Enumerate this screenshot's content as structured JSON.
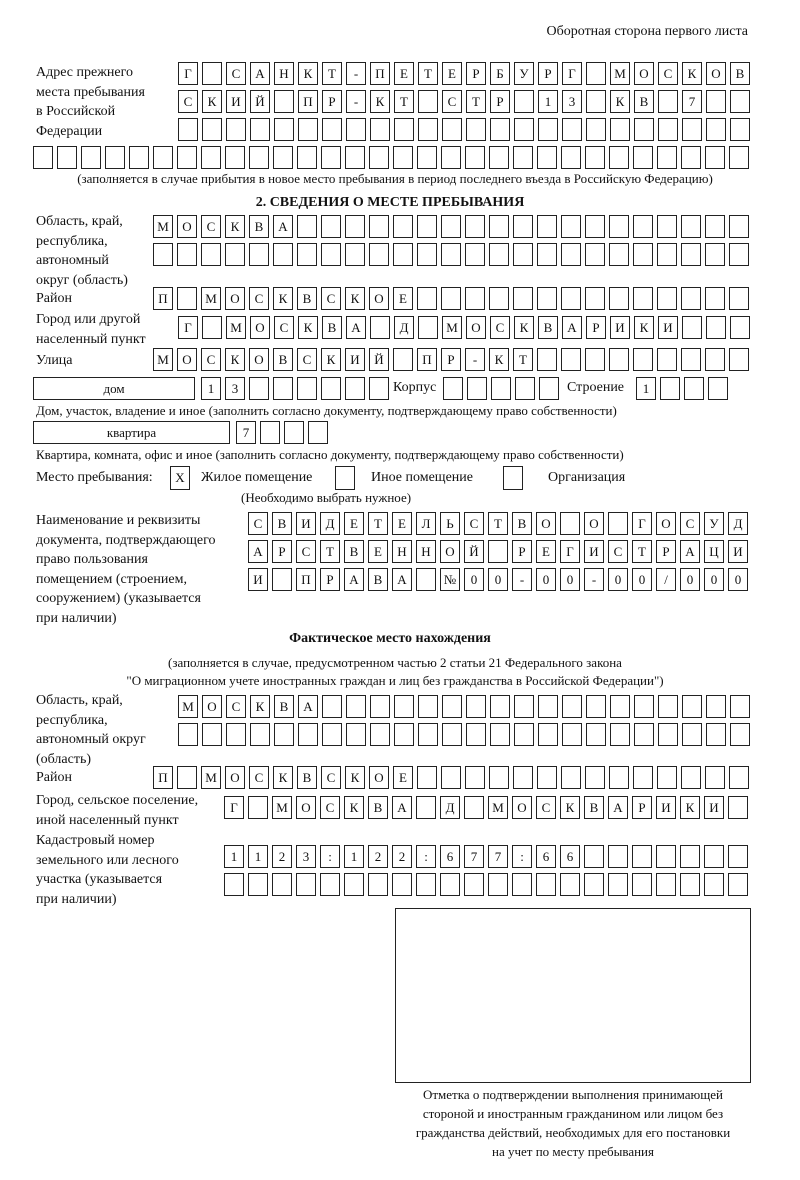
{
  "header": {
    "page_side": "Оборотная сторона первого листа"
  },
  "previous_address": {
    "label": [
      "Адрес прежнего",
      "места пребывания",
      "в Российской",
      "Федерации"
    ],
    "rows": [
      "Г САНКТ-ПЕТЕРБУРГ МОСКОВ",
      "СКИЙ ПР-КТ СТР 13 КВ 7",
      "",
      ""
    ],
    "note": "(заполняется в случае прибытия в новое место пребывания в период последнего въезда в Российскую Федерацию)"
  },
  "section2": {
    "title": "2. СВЕДЕНИЯ О МЕСТЕ ПРЕБЫВАНИЯ",
    "region_label": [
      "Область, край,",
      "республика,",
      "автономный",
      "округ (область)"
    ],
    "region_rows": [
      "МОСКВА",
      ""
    ],
    "district_label": "Район",
    "district": "П МОСКВСКОЕ",
    "city_label": [
      "Город или другой",
      "населенный пункт"
    ],
    "city": "Г МОСКВА Д МОСКВАРИКИ",
    "street_label": "Улица",
    "street": "МОСКОВСКИЙ ПР-КТ",
    "house_type": "дом",
    "house_number": "13",
    "korpus_label": "Корпус",
    "korpus": "",
    "building_label": "Строение",
    "building": "1",
    "house_note": "Дом, участок, владение и иное (заполнить согласно документу, подтверждающему право собственности)",
    "apartment_type": "квартира",
    "apartment_number": "7",
    "apartment_note": "Квартира, комната, офис и иное (заполнить согласно документу, подтверждающему право собственности)",
    "stay_place_label": "Место пребывания:",
    "stay_options": [
      {
        "label": "Жилое помещение",
        "mark": "Х"
      },
      {
        "label": "Иное помещение",
        "mark": ""
      },
      {
        "label": "Организация",
        "mark": ""
      }
    ],
    "stay_note": "(Необходимо выбрать нужное)",
    "document_label": [
      "Наименование и реквизиты",
      "документа, подтверждающего",
      "право пользования",
      "помещением (строением,",
      "сооружением) (указывается",
      "при наличии)"
    ],
    "document_rows": [
      "СВИДЕТЕЛЬСТВО О ГОСУД",
      "АРСТВЕННОЙ РЕГИСТРАЦИ",
      "И ПРАВА №00-00-00/000"
    ]
  },
  "actual_location": {
    "title": "Фактическое место нахождения",
    "note": [
      "(заполняется в случае, предусмотренном частью 2 статьи 21 Федерального закона",
      "\"О миграционном учете иностранных граждан и лиц без гражданства в Российской Федерации\")"
    ],
    "region_label": [
      "Область, край,",
      "республика,",
      "автономный округ",
      "(область)"
    ],
    "region_rows": [
      "МОСКВА",
      ""
    ],
    "district_label": "Район",
    "district": "П МОСКВСКОЕ",
    "city_label": [
      "Город, сельское поселение,",
      "иной населенный пункт"
    ],
    "city": "Г МОСКВА Д МОСКВАРИКИ",
    "cadastral_label": [
      "Кадастровый номер",
      "земельного или лесного",
      "участка (указывается",
      "при наличии)"
    ],
    "cadastral_rows": [
      "1123:122:677:66",
      ""
    ]
  },
  "confirmation": {
    "caption": [
      "Отметка о подтверждении выполнения принимающей",
      "стороной и иностранным гражданином или лицом без",
      "гражданства действий, необходимых для его постановки",
      "на учет по месту пребывания"
    ]
  }
}
